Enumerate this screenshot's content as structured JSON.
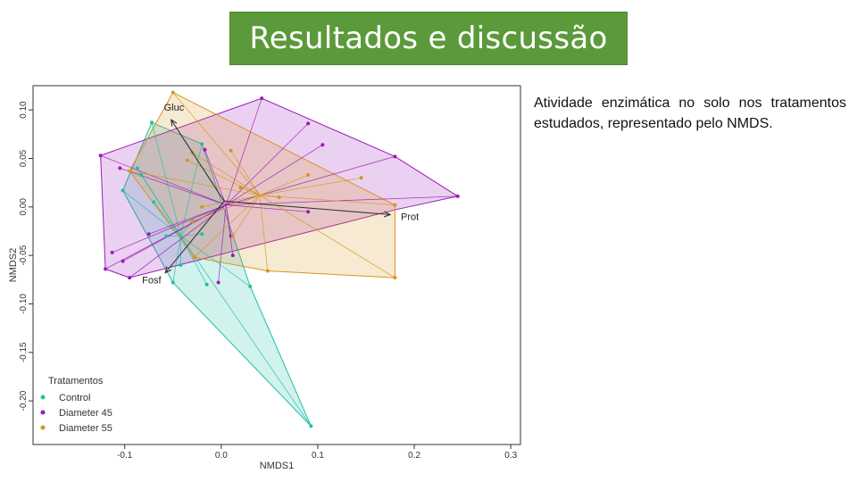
{
  "slide": {
    "title": "Resultados e discussão",
    "description": "Atividade enzimática no solo nos tratamentos estudados, representado pelo NMDS."
  },
  "colors": {
    "title_bg": "#5b9a3a",
    "Control": "#1fbfa8",
    "Diameter 45": "#9b19b8",
    "Diameter 55": "#d6961e"
  },
  "chart_data": {
    "type": "scatter",
    "subtype": "NMDS ordination with convex hulls, spiders and enzyme vectors",
    "xlabel": "NMDS1",
    "ylabel": "NMDS2",
    "xlim": [
      -0.195,
      0.31
    ],
    "ylim": [
      -0.245,
      0.125
    ],
    "x_ticks": [
      "-0.1",
      "0.0",
      "0.1",
      "0.2",
      "0.3"
    ],
    "y_ticks": [
      "-0.20",
      "-0.15",
      "-0.10",
      "-0.05",
      "0.00",
      "0.05",
      "0.10"
    ],
    "grid": false,
    "legend": {
      "title": "Tratamentos",
      "position": "bottom-left"
    },
    "series": [
      {
        "name": "Control",
        "centroid": [
          -0.042,
          -0.03
        ],
        "hull_order": [
          [
            -0.072,
            0.087
          ],
          [
            -0.02,
            0.065
          ],
          [
            0.03,
            -0.082
          ],
          [
            0.093,
            -0.226
          ],
          [
            -0.05,
            -0.078
          ],
          [
            -0.102,
            0.017
          ]
        ],
        "points": [
          [
            -0.072,
            0.087
          ],
          [
            -0.02,
            0.065
          ],
          [
            -0.102,
            0.017
          ],
          [
            -0.083,
            0.033
          ],
          [
            -0.087,
            0.04
          ],
          [
            -0.07,
            0.005
          ],
          [
            -0.057,
            -0.03
          ],
          [
            -0.042,
            -0.06
          ],
          [
            -0.05,
            -0.078
          ],
          [
            -0.015,
            -0.08
          ],
          [
            0.03,
            -0.082
          ],
          [
            0.093,
            -0.226
          ],
          [
            -0.02,
            -0.028
          ],
          [
            -0.03,
            -0.014
          ]
        ]
      },
      {
        "name": "Diameter 45",
        "centroid": [
          0.005,
          0.002
        ],
        "hull_order": [
          [
            -0.125,
            0.053
          ],
          [
            0.042,
            0.112
          ],
          [
            0.18,
            0.052
          ],
          [
            0.245,
            0.011
          ],
          [
            0.18,
            -0.003
          ],
          [
            -0.095,
            -0.073
          ],
          [
            -0.12,
            -0.064
          ]
        ],
        "points": [
          [
            -0.125,
            0.053
          ],
          [
            0.042,
            0.112
          ],
          [
            0.09,
            0.086
          ],
          [
            0.105,
            0.064
          ],
          [
            0.18,
            0.052
          ],
          [
            0.245,
            0.011
          ],
          [
            0.09,
            -0.005
          ],
          [
            -0.017,
            0.059
          ],
          [
            0.01,
            -0.03
          ],
          [
            0.012,
            -0.05
          ],
          [
            -0.105,
            0.04
          ],
          [
            -0.113,
            -0.047
          ],
          [
            -0.102,
            -0.056
          ],
          [
            -0.12,
            -0.064
          ],
          [
            -0.095,
            -0.073
          ],
          [
            -0.075,
            -0.028
          ],
          [
            -0.003,
            -0.078
          ]
        ]
      },
      {
        "name": "Diameter 55",
        "centroid": [
          0.04,
          0.012
        ],
        "hull_order": [
          [
            -0.05,
            0.118
          ],
          [
            0.18,
            0.002
          ],
          [
            0.18,
            -0.073
          ],
          [
            0.048,
            -0.066
          ],
          [
            -0.028,
            -0.052
          ],
          [
            -0.095,
            0.037
          ]
        ],
        "points": [
          [
            -0.05,
            0.118
          ],
          [
            -0.03,
            0.056
          ],
          [
            -0.035,
            0.048
          ],
          [
            0.01,
            0.058
          ],
          [
            0.09,
            0.033
          ],
          [
            0.145,
            0.03
          ],
          [
            0.18,
            0.002
          ],
          [
            0.18,
            -0.073
          ],
          [
            0.048,
            -0.066
          ],
          [
            -0.028,
            -0.052
          ],
          [
            -0.095,
            0.037
          ],
          [
            -0.02,
            0.0
          ],
          [
            -0.03,
            -0.015
          ],
          [
            0.02,
            0.02
          ],
          [
            0.06,
            0.01
          ],
          [
            0.012,
            -0.03
          ]
        ]
      }
    ],
    "vectors": [
      {
        "label": "Gluc",
        "end": [
          -0.052,
          0.09
        ]
      },
      {
        "label": "Prot",
        "end": [
          0.175,
          -0.008
        ]
      },
      {
        "label": "Fosf",
        "end": [
          -0.058,
          -0.068
        ]
      }
    ]
  }
}
